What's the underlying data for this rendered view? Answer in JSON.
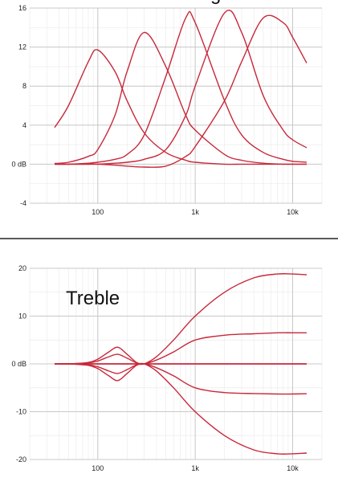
{
  "chart_data": [
    {
      "type": "line",
      "title": "",
      "title_fragment": "g",
      "xlabel": "",
      "ylabel": "",
      "x_scale": "log",
      "xlim": [
        20,
        20000
      ],
      "ylim": [
        -4,
        16
      ],
      "x_ticks": [
        100,
        1000,
        10000
      ],
      "x_tick_labels": [
        "100",
        "1k",
        "10k"
      ],
      "y_ticks": [
        16,
        12,
        8,
        4,
        0,
        -4
      ],
      "y_tick_labels": [
        "16",
        "12",
        "8",
        "4",
        "0 dB",
        "-4"
      ],
      "grid": true,
      "line_color": "#c8283a",
      "x": [
        20,
        30,
        50,
        80,
        100,
        150,
        200,
        300,
        500,
        800,
        1000,
        2000,
        3000,
        5000,
        8000,
        10000,
        20000
      ],
      "series": [
        {
          "values": [
            1.0,
            2.5,
            6.0,
            10.5,
            11.7,
            9.5,
            6.5,
            3.2,
            1.2,
            0.4,
            0.2,
            0.0,
            0.0,
            0.0,
            0.0,
            0.0,
            0.0
          ]
        },
        {
          "values": [
            0.0,
            0.0,
            0.2,
            0.8,
            1.5,
            5.0,
            9.5,
            13.5,
            10.0,
            5.0,
            3.5,
            1.0,
            0.4,
            0.1,
            0.0,
            0.0,
            0.0
          ]
        },
        {
          "values": [
            0.0,
            0.0,
            0.0,
            0.1,
            0.2,
            0.5,
            1.0,
            3.0,
            9.0,
            15.0,
            14.5,
            6.5,
            3.0,
            1.2,
            0.5,
            0.3,
            0.1
          ]
        },
        {
          "values": [
            0.0,
            0.0,
            0.0,
            0.0,
            0.0,
            0.1,
            0.2,
            0.5,
            1.5,
            5.0,
            8.0,
            15.5,
            13.5,
            7.0,
            3.5,
            2.5,
            0.8
          ]
        },
        {
          "values": [
            0.0,
            0.0,
            0.0,
            0.0,
            0.0,
            -0.1,
            -0.2,
            -0.3,
            -0.2,
            0.8,
            1.8,
            6.5,
            10.5,
            15.0,
            14.5,
            13.0,
            7.5
          ]
        }
      ]
    },
    {
      "type": "line",
      "title": "",
      "annotation": "Treble",
      "xlabel": "",
      "ylabel": "",
      "x_scale": "log",
      "xlim": [
        20,
        20000
      ],
      "ylim": [
        -20,
        20
      ],
      "x_ticks": [
        100,
        1000,
        10000
      ],
      "x_tick_labels": [
        "100",
        "1k",
        "10k"
      ],
      "y_ticks": [
        20,
        10,
        0,
        -10,
        -20
      ],
      "y_tick_labels": [
        "20",
        "10",
        "0 dB",
        "-10",
        "-20"
      ],
      "grid": true,
      "line_color": "#c8283a",
      "x": [
        25,
        50,
        80,
        100,
        130,
        160,
        200,
        250,
        300,
        400,
        600,
        1000,
        2000,
        4000,
        7000,
        10000,
        20000
      ],
      "series": [
        {
          "values": [
            0,
            0,
            0,
            0,
            0,
            0,
            0,
            0,
            0,
            1.5,
            5.0,
            10.0,
            15.0,
            18.0,
            18.8,
            18.8,
            18.5
          ]
        },
        {
          "values": [
            0,
            0,
            0.3,
            1.0,
            2.5,
            3.5,
            2.0,
            0.3,
            0,
            0.8,
            2.5,
            5.0,
            6.0,
            6.3,
            6.5,
            6.5,
            6.5
          ]
        },
        {
          "values": [
            0,
            0,
            0.2,
            0.6,
            1.5,
            2.0,
            1.2,
            0.2,
            0,
            0,
            0,
            0,
            0,
            0,
            0,
            0,
            0
          ]
        },
        {
          "values": [
            0,
            0,
            -0.2,
            -0.6,
            -1.5,
            -2.0,
            -1.2,
            -0.2,
            0,
            0,
            0,
            0,
            0,
            0,
            0,
            0,
            0
          ]
        },
        {
          "values": [
            0,
            0,
            -0.3,
            -1.0,
            -2.5,
            -3.5,
            -2.0,
            -0.3,
            0,
            -0.8,
            -2.5,
            -5.0,
            -6.0,
            -6.2,
            -6.3,
            -6.3,
            -6.2
          ]
        },
        {
          "values": [
            0,
            0,
            0,
            0,
            0,
            0,
            0,
            0,
            0,
            -1.5,
            -5.0,
            -10.0,
            -15.0,
            -18.0,
            -18.8,
            -18.8,
            -18.5
          ]
        }
      ]
    }
  ]
}
